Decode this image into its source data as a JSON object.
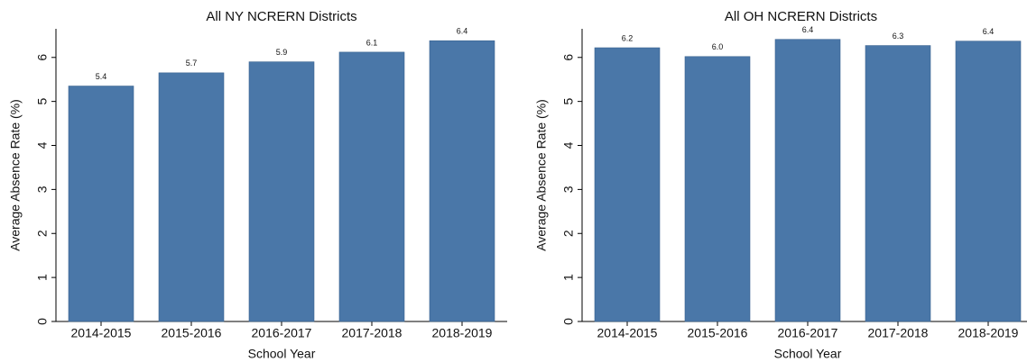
{
  "chart_data": [
    {
      "type": "bar",
      "title": "All NY NCRERN Districts",
      "x_label": "School Year",
      "y_label": "Average Absence Rate (%)",
      "categories": [
        "2014-2015",
        "2015-2016",
        "2016-2017",
        "2017-2018",
        "2018-2019"
      ],
      "values": [
        5.35,
        5.65,
        5.9,
        6.12,
        6.38
      ],
      "value_labels": [
        "5.4",
        "5.7",
        "5.9",
        "6.1",
        "6.4"
      ],
      "color": "#4a77a8",
      "ylim": [
        0,
        6.65
      ],
      "yticks": [
        0,
        1,
        2,
        3,
        4,
        5,
        6
      ],
      "grid": false
    },
    {
      "type": "bar",
      "title": "All OH NCRERN Districts",
      "x_label": "School Year",
      "y_label": "Average Absence Rate (%)",
      "categories": [
        "2014-2015",
        "2015-2016",
        "2016-2017",
        "2017-2018",
        "2018-2019"
      ],
      "values": [
        6.22,
        6.02,
        6.41,
        6.27,
        6.37
      ],
      "value_labels": [
        "6.2",
        "6.0",
        "6.4",
        "6.3",
        "6.4"
      ],
      "color": "#4a77a8",
      "ylim": [
        0,
        6.65
      ],
      "yticks": [
        0,
        1,
        2,
        3,
        4,
        5,
        6
      ],
      "grid": false
    }
  ]
}
